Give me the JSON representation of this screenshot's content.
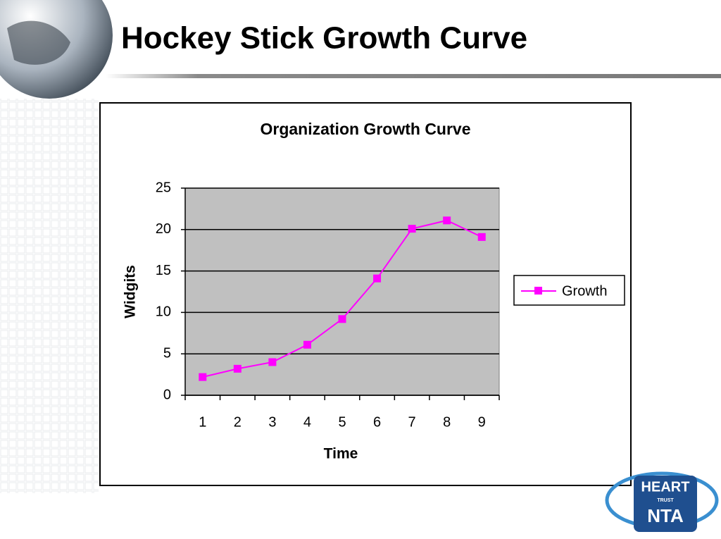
{
  "slide_title": "Hockey Stick Growth Curve",
  "logo": {
    "name": "HEART",
    "sub": "TRUST",
    "mark": "NTA"
  },
  "chart_data": {
    "type": "line",
    "title": "Organization Growth Curve",
    "x_label": "Time",
    "y_label": "Widgits",
    "categories": [
      "1",
      "2",
      "3",
      "4",
      "5",
      "6",
      "7",
      "8",
      "9"
    ],
    "series": [
      {
        "name": "Growth",
        "color": "#ff00ff",
        "values": [
          2.2,
          3.2,
          4.0,
          6.1,
          9.2,
          14.1,
          20.1,
          21.1,
          19.1
        ]
      }
    ],
    "ylim": [
      0,
      25
    ],
    "yticks": [
      0,
      5,
      10,
      15,
      20,
      25
    ],
    "grid": true,
    "plot_background": "#c0c0c0",
    "legend": "right"
  }
}
